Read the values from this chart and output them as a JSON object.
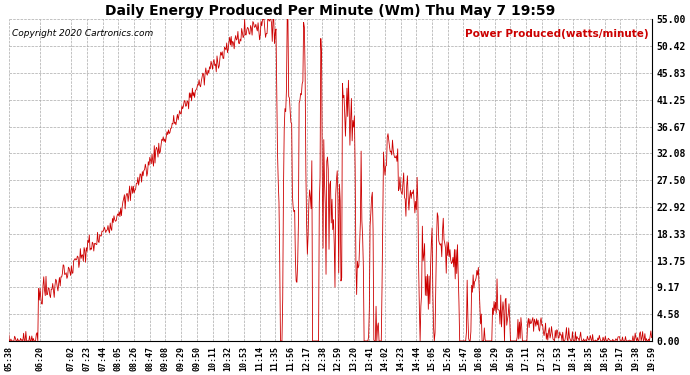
{
  "title": "Daily Energy Produced Per Minute (Wm) Thu May 7 19:59",
  "legend_label": "Power Produced(watts/minute)",
  "copyright_text": "Copyright 2020 Cartronics.com",
  "line_color": "#cc0000",
  "legend_color": "#cc0000",
  "copyright_color": "#000000",
  "background_color": "#ffffff",
  "grid_color": "#aaaaaa",
  "title_color": "#000000",
  "ylim": [
    0,
    55.0
  ],
  "yticks": [
    0.0,
    4.58,
    9.17,
    13.75,
    18.33,
    22.92,
    27.5,
    32.08,
    36.67,
    41.25,
    45.83,
    50.42,
    55.0
  ],
  "ytick_labels": [
    "0.00",
    "4.58",
    "9.17",
    "13.75",
    "18.33",
    "22.92",
    "27.50",
    "32.08",
    "36.67",
    "41.25",
    "45.83",
    "50.42",
    "55.00"
  ],
  "xtick_labels": [
    "05:38",
    "06:20",
    "07:02",
    "07:23",
    "07:44",
    "08:05",
    "08:26",
    "08:47",
    "09:08",
    "09:29",
    "09:50",
    "10:11",
    "10:32",
    "10:53",
    "11:14",
    "11:35",
    "11:56",
    "12:17",
    "12:38",
    "12:59",
    "13:20",
    "13:41",
    "14:02",
    "14:23",
    "14:44",
    "15:05",
    "15:26",
    "15:47",
    "16:08",
    "16:29",
    "16:50",
    "17:11",
    "17:32",
    "17:53",
    "18:14",
    "18:35",
    "18:56",
    "19:17",
    "19:38",
    "19:59"
  ],
  "figsize": [
    6.9,
    3.75
  ],
  "dpi": 100
}
